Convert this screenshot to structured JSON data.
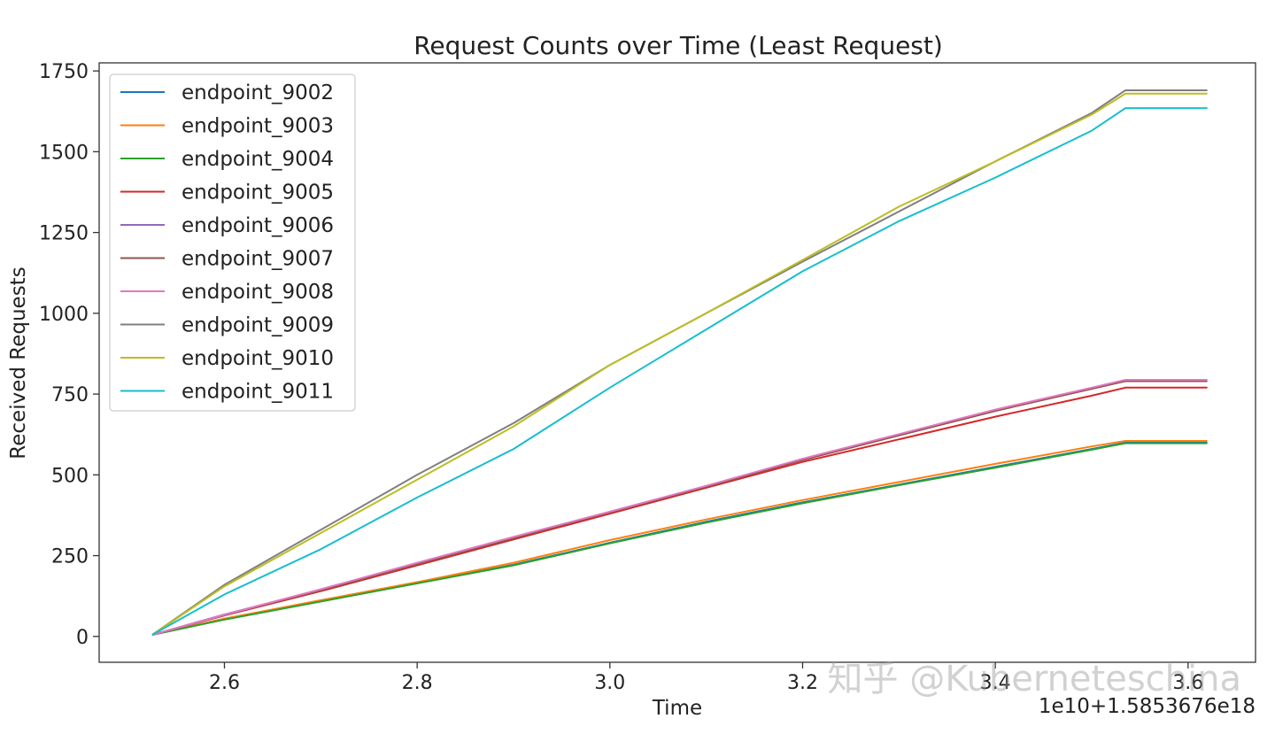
{
  "chart_data": {
    "type": "line",
    "title": "Request Counts over Time (Least Request)",
    "xlabel": "Time",
    "ylabel": "Received Requests",
    "x_offset_label": "1e10+1.5853676e18",
    "xlim": [
      2.47,
      3.67
    ],
    "ylim": [
      -80,
      1775
    ],
    "xticks": [
      2.6,
      2.8,
      3.0,
      3.2,
      3.4,
      3.6
    ],
    "xtick_labels": [
      "2.6",
      "2.8",
      "3.0",
      "3.2",
      "3.4",
      "3.6"
    ],
    "yticks": [
      0,
      250,
      500,
      750,
      1000,
      1250,
      1500,
      1750
    ],
    "ytick_labels": [
      "0",
      "250",
      "500",
      "750",
      "1000",
      "1250",
      "1500",
      "1750"
    ],
    "grid": false,
    "legend_position": "top-left",
    "watermark": "知乎 @Kuberneteschina",
    "series": [
      {
        "name": "endpoint_9002",
        "color": "#1f77b4",
        "x": [
          2.525,
          2.6,
          2.7,
          2.8,
          2.9,
          3.0,
          3.1,
          3.2,
          3.3,
          3.4,
          3.5,
          3.535,
          3.62
        ],
        "y": [
          5,
          55,
          110,
          165,
          222,
          290,
          355,
          415,
          470,
          525,
          580,
          600,
          600
        ]
      },
      {
        "name": "endpoint_9003",
        "color": "#ff7f0e",
        "x": [
          2.525,
          2.6,
          2.7,
          2.8,
          2.9,
          3.0,
          3.1,
          3.2,
          3.3,
          3.4,
          3.5,
          3.535,
          3.62
        ],
        "y": [
          5,
          55,
          112,
          168,
          228,
          298,
          362,
          422,
          478,
          534,
          588,
          605,
          605
        ]
      },
      {
        "name": "endpoint_9004",
        "color": "#2ca02c",
        "x": [
          2.525,
          2.6,
          2.7,
          2.8,
          2.9,
          3.0,
          3.1,
          3.2,
          3.3,
          3.4,
          3.5,
          3.535,
          3.62
        ],
        "y": [
          5,
          52,
          108,
          164,
          220,
          288,
          352,
          412,
          468,
          522,
          578,
          598,
          598
        ]
      },
      {
        "name": "endpoint_9005",
        "color": "#d62728",
        "x": [
          2.525,
          2.6,
          2.7,
          2.8,
          2.9,
          3.0,
          3.1,
          3.2,
          3.3,
          3.4,
          3.5,
          3.535,
          3.62
        ],
        "y": [
          5,
          65,
          140,
          220,
          300,
          380,
          460,
          540,
          610,
          680,
          745,
          770,
          770
        ]
      },
      {
        "name": "endpoint_9006",
        "color": "#9467bd",
        "x": [
          2.525,
          2.6,
          2.7,
          2.8,
          2.9,
          3.0,
          3.1,
          3.2,
          3.3,
          3.4,
          3.5,
          3.535,
          3.62
        ],
        "y": [
          5,
          68,
          145,
          226,
          306,
          385,
          465,
          548,
          625,
          700,
          768,
          792,
          792
        ]
      },
      {
        "name": "endpoint_9007",
        "color": "#8c564b",
        "x": [
          2.525,
          2.6,
          2.7,
          2.8,
          2.9,
          3.0,
          3.1,
          3.2,
          3.3,
          3.4,
          3.5,
          3.535,
          3.62
        ],
        "y": [
          5,
          66,
          143,
          224,
          304,
          384,
          463,
          546,
          622,
          698,
          766,
          790,
          790
        ]
      },
      {
        "name": "endpoint_9008",
        "color": "#e377c2",
        "x": [
          2.525,
          2.6,
          2.7,
          2.8,
          2.9,
          3.0,
          3.1,
          3.2,
          3.3,
          3.4,
          3.5,
          3.535,
          3.62
        ],
        "y": [
          5,
          67,
          146,
          228,
          308,
          386,
          466,
          550,
          626,
          702,
          770,
          794,
          794
        ]
      },
      {
        "name": "endpoint_9009",
        "color": "#7f7f7f",
        "x": [
          2.525,
          2.6,
          2.7,
          2.8,
          2.9,
          3.0,
          3.1,
          3.2,
          3.3,
          3.4,
          3.5,
          3.535,
          3.62
        ],
        "y": [
          5,
          160,
          330,
          500,
          660,
          840,
          1000,
          1160,
          1315,
          1470,
          1620,
          1690,
          1690
        ]
      },
      {
        "name": "endpoint_9010",
        "color": "#bcbd22",
        "x": [
          2.525,
          2.6,
          2.7,
          2.8,
          2.9,
          3.0,
          3.1,
          3.2,
          3.3,
          3.4,
          3.5,
          3.535,
          3.62
        ],
        "y": [
          5,
          155,
          320,
          485,
          650,
          840,
          1000,
          1165,
          1330,
          1470,
          1615,
          1680,
          1680
        ]
      },
      {
        "name": "endpoint_9011",
        "color": "#17becf",
        "x": [
          2.525,
          2.6,
          2.7,
          2.8,
          2.9,
          3.0,
          3.1,
          3.2,
          3.3,
          3.4,
          3.5,
          3.535,
          3.62
        ],
        "y": [
          5,
          130,
          270,
          430,
          580,
          770,
          950,
          1130,
          1285,
          1420,
          1565,
          1635,
          1635
        ]
      }
    ]
  }
}
